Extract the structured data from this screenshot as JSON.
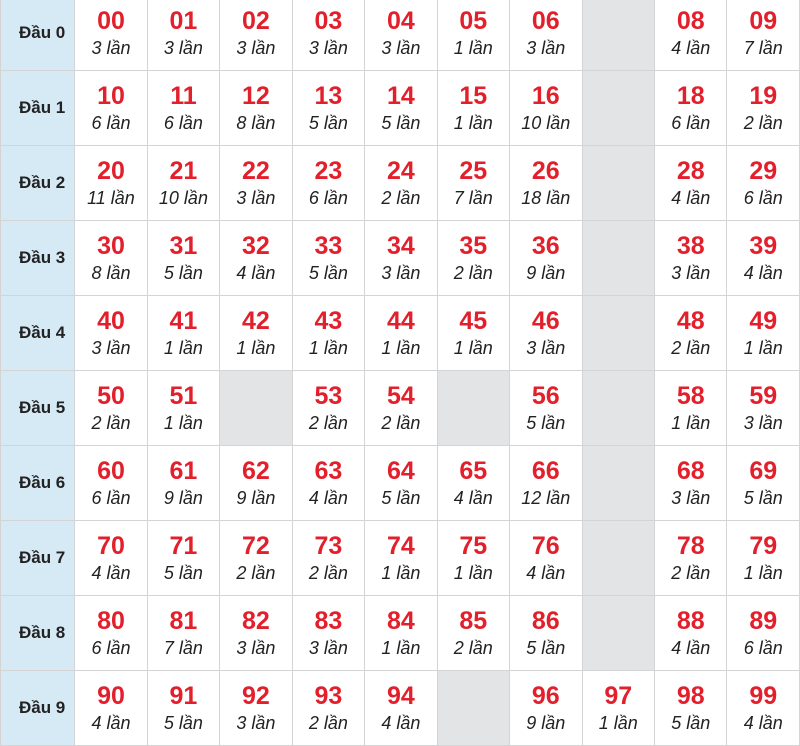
{
  "count_suffix": "lần",
  "colors": {
    "number": "#e21f2b",
    "head_bg": "#d6eaf6",
    "empty_bg": "#e3e4e6"
  },
  "rows": [
    {
      "label": "Đầu 0",
      "cells": [
        {
          "n": "00",
          "c": "3 lần"
        },
        {
          "n": "01",
          "c": "3 lần"
        },
        {
          "n": "02",
          "c": "3 lần"
        },
        {
          "n": "03",
          "c": "3 lần"
        },
        {
          "n": "04",
          "c": "3 lần"
        },
        {
          "n": "05",
          "c": "1 lần"
        },
        {
          "n": "06",
          "c": "3 lần"
        },
        null,
        {
          "n": "08",
          "c": "4 lần"
        },
        {
          "n": "09",
          "c": "7 lần"
        }
      ]
    },
    {
      "label": "Đầu 1",
      "cells": [
        {
          "n": "10",
          "c": "6 lần"
        },
        {
          "n": "11",
          "c": "6 lần"
        },
        {
          "n": "12",
          "c": "8 lần"
        },
        {
          "n": "13",
          "c": "5 lần"
        },
        {
          "n": "14",
          "c": "5 lần"
        },
        {
          "n": "15",
          "c": "1 lần"
        },
        {
          "n": "16",
          "c": "10 lần"
        },
        null,
        {
          "n": "18",
          "c": "6 lần"
        },
        {
          "n": "19",
          "c": "2 lần"
        }
      ]
    },
    {
      "label": "Đầu 2",
      "cells": [
        {
          "n": "20",
          "c": "11 lần"
        },
        {
          "n": "21",
          "c": "10 lần"
        },
        {
          "n": "22",
          "c": "3 lần"
        },
        {
          "n": "23",
          "c": "6 lần"
        },
        {
          "n": "24",
          "c": "2 lần"
        },
        {
          "n": "25",
          "c": "7 lần"
        },
        {
          "n": "26",
          "c": "18 lần"
        },
        null,
        {
          "n": "28",
          "c": "4 lần"
        },
        {
          "n": "29",
          "c": "6 lần"
        }
      ]
    },
    {
      "label": "Đầu 3",
      "cells": [
        {
          "n": "30",
          "c": "8 lần"
        },
        {
          "n": "31",
          "c": "5 lần"
        },
        {
          "n": "32",
          "c": "4 lần"
        },
        {
          "n": "33",
          "c": "5 lần"
        },
        {
          "n": "34",
          "c": "3 lần"
        },
        {
          "n": "35",
          "c": "2 lần"
        },
        {
          "n": "36",
          "c": "9 lần"
        },
        null,
        {
          "n": "38",
          "c": "3 lần"
        },
        {
          "n": "39",
          "c": "4 lần"
        }
      ]
    },
    {
      "label": "Đầu 4",
      "cells": [
        {
          "n": "40",
          "c": "3 lần"
        },
        {
          "n": "41",
          "c": "1 lần"
        },
        {
          "n": "42",
          "c": "1 lần"
        },
        {
          "n": "43",
          "c": "1 lần"
        },
        {
          "n": "44",
          "c": "1 lần"
        },
        {
          "n": "45",
          "c": "1 lần"
        },
        {
          "n": "46",
          "c": "3 lần"
        },
        null,
        {
          "n": "48",
          "c": "2 lần"
        },
        {
          "n": "49",
          "c": "1 lần"
        }
      ]
    },
    {
      "label": "Đầu 5",
      "cells": [
        {
          "n": "50",
          "c": "2 lần"
        },
        {
          "n": "51",
          "c": "1 lần"
        },
        null,
        {
          "n": "53",
          "c": "2 lần"
        },
        {
          "n": "54",
          "c": "2 lần"
        },
        null,
        {
          "n": "56",
          "c": "5 lần"
        },
        null,
        {
          "n": "58",
          "c": "1 lần"
        },
        {
          "n": "59",
          "c": "3 lần"
        }
      ]
    },
    {
      "label": "Đầu 6",
      "cells": [
        {
          "n": "60",
          "c": "6 lần"
        },
        {
          "n": "61",
          "c": "9 lần"
        },
        {
          "n": "62",
          "c": "9 lần"
        },
        {
          "n": "63",
          "c": "4 lần"
        },
        {
          "n": "64",
          "c": "5 lần"
        },
        {
          "n": "65",
          "c": "4 lần"
        },
        {
          "n": "66",
          "c": "12 lần"
        },
        null,
        {
          "n": "68",
          "c": "3 lần"
        },
        {
          "n": "69",
          "c": "5 lần"
        }
      ]
    },
    {
      "label": "Đầu 7",
      "cells": [
        {
          "n": "70",
          "c": "4 lần"
        },
        {
          "n": "71",
          "c": "5 lần"
        },
        {
          "n": "72",
          "c": "2 lần"
        },
        {
          "n": "73",
          "c": "2 lần"
        },
        {
          "n": "74",
          "c": "1 lần"
        },
        {
          "n": "75",
          "c": "1 lần"
        },
        {
          "n": "76",
          "c": "4 lần"
        },
        null,
        {
          "n": "78",
          "c": "2 lần"
        },
        {
          "n": "79",
          "c": "1 lần"
        }
      ]
    },
    {
      "label": "Đầu 8",
      "cells": [
        {
          "n": "80",
          "c": "6 lần"
        },
        {
          "n": "81",
          "c": "7 lần"
        },
        {
          "n": "82",
          "c": "3 lần"
        },
        {
          "n": "83",
          "c": "3 lần"
        },
        {
          "n": "84",
          "c": "1 lần"
        },
        {
          "n": "85",
          "c": "2 lần"
        },
        {
          "n": "86",
          "c": "5 lần"
        },
        null,
        {
          "n": "88",
          "c": "4 lần"
        },
        {
          "n": "89",
          "c": "6 lần"
        }
      ]
    },
    {
      "label": "Đầu 9",
      "cells": [
        {
          "n": "90",
          "c": "4 lần"
        },
        {
          "n": "91",
          "c": "5 lần"
        },
        {
          "n": "92",
          "c": "3 lần"
        },
        {
          "n": "93",
          "c": "2 lần"
        },
        {
          "n": "94",
          "c": "4 lần"
        },
        null,
        {
          "n": "96",
          "c": "9 lần"
        },
        {
          "n": "97",
          "c": "1 lần"
        },
        {
          "n": "98",
          "c": "5 lần"
        },
        {
          "n": "99",
          "c": "4 lần"
        }
      ]
    }
  ]
}
